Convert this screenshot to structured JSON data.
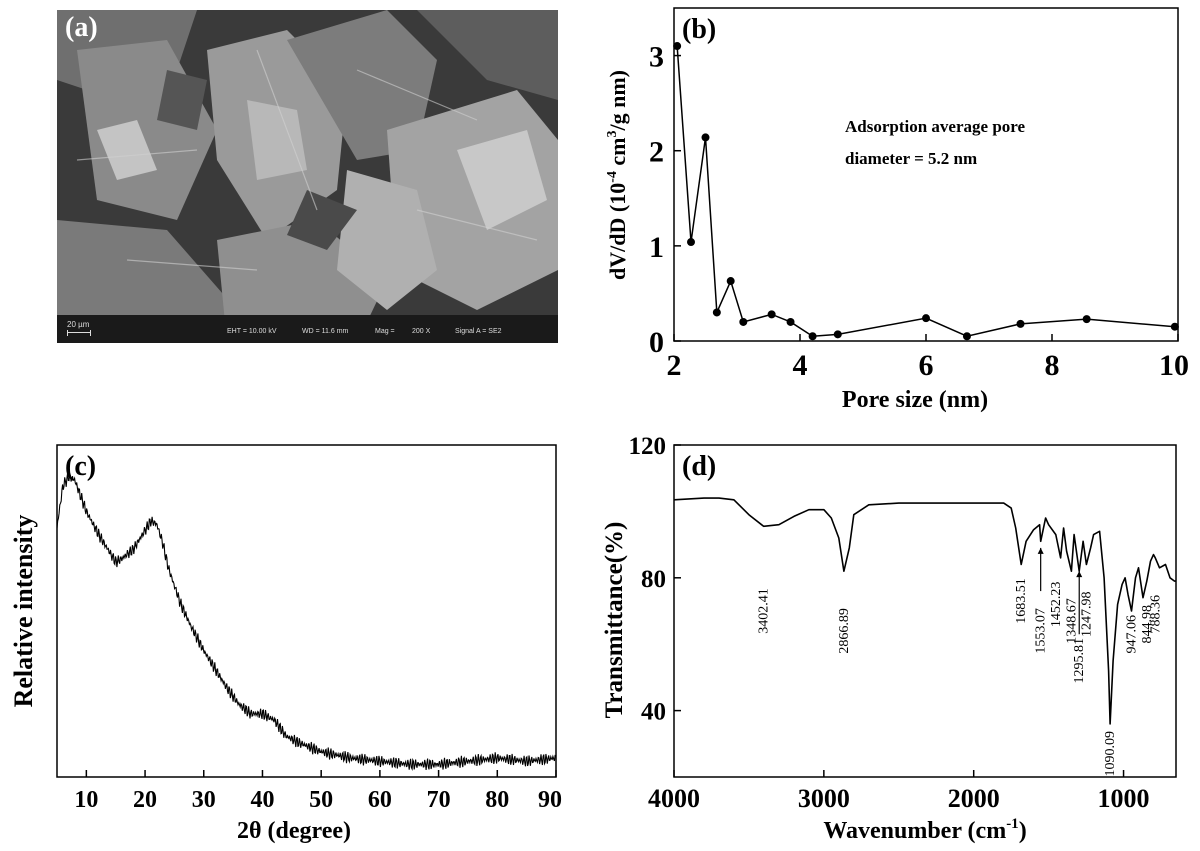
{
  "panels": {
    "a": {
      "label": "(a)",
      "scale_bar": "20 µm",
      "info": [
        "EHT = 10.00 kV",
        "WD = 11.6 mm",
        "Mag =",
        "200 X",
        "Signal A = SE2"
      ]
    },
    "b": {
      "label": "(b)",
      "annotation_line1": "Adsorption average pore",
      "annotation_line2": "diameter = 5.2 nm"
    },
    "c": {
      "label": "(c)"
    },
    "d": {
      "label": "(d)"
    }
  },
  "chart_data": [
    {
      "panel": "b",
      "type": "line",
      "xlabel": "Pore size (nm)",
      "ylabel": "dV/dD (10^-4 cm^3/g nm)",
      "xlim": [
        2,
        10
      ],
      "ylim": [
        0,
        3.5
      ],
      "xticks": [
        2,
        4,
        6,
        8,
        10
      ],
      "yticks": [
        0,
        1,
        2,
        3
      ],
      "markers": true,
      "x": [
        2.05,
        2.27,
        2.5,
        2.68,
        2.9,
        3.1,
        3.55,
        3.85,
        4.2,
        4.6,
        6.0,
        6.65,
        7.5,
        8.55,
        9.95
      ],
      "y": [
        3.1,
        1.04,
        2.14,
        0.3,
        0.63,
        0.2,
        0.28,
        0.2,
        0.05,
        0.07,
        0.24,
        0.05,
        0.18,
        0.23,
        0.15
      ]
    },
    {
      "panel": "c",
      "type": "line",
      "xlabel": "2θ (degree)",
      "ylabel": "Relative intensity",
      "xlim": [
        5,
        90
      ],
      "ylim": [
        0,
        1.05
      ],
      "xticks": [
        10,
        20,
        30,
        40,
        50,
        60,
        70,
        80,
        90
      ],
      "yticks": [],
      "x": [
        5,
        6,
        7,
        8,
        9,
        10,
        12,
        14,
        15,
        16,
        18,
        20,
        21,
        22,
        23,
        24,
        26,
        28,
        30,
        32,
        34,
        36,
        38,
        40,
        42,
        44,
        46,
        50,
        55,
        60,
        65,
        70,
        75,
        80,
        85,
        90
      ],
      "y": [
        0.79,
        0.92,
        0.95,
        0.94,
        0.89,
        0.84,
        0.77,
        0.71,
        0.68,
        0.69,
        0.72,
        0.78,
        0.81,
        0.8,
        0.74,
        0.66,
        0.55,
        0.47,
        0.4,
        0.34,
        0.28,
        0.23,
        0.2,
        0.2,
        0.18,
        0.13,
        0.11,
        0.08,
        0.06,
        0.05,
        0.04,
        0.04,
        0.05,
        0.06,
        0.05,
        0.06
      ]
    },
    {
      "panel": "d",
      "type": "line",
      "xlabel": "Wavenumber (cm-1)",
      "ylabel": "Transmittance(%)",
      "xlim": [
        4000,
        650
      ],
      "ylim": [
        20,
        120
      ],
      "xticks": [
        4000,
        3000,
        2000,
        1000
      ],
      "yticks": [
        40,
        80,
        120
      ],
      "x": [
        4000,
        3800,
        3700,
        3600,
        3500,
        3402,
        3300,
        3200,
        3100,
        3000,
        2950,
        2900,
        2866,
        2830,
        2800,
        2700,
        2500,
        2000,
        1800,
        1750,
        1720,
        1683,
        1650,
        1600,
        1560,
        1553,
        1520,
        1500,
        1452,
        1420,
        1400,
        1380,
        1348,
        1330,
        1296,
        1270,
        1248,
        1220,
        1200,
        1160,
        1130,
        1100,
        1090,
        1070,
        1040,
        1010,
        990,
        970,
        947,
        920,
        900,
        870,
        845,
        820,
        800,
        788,
        760,
        720,
        690,
        660,
        650
      ],
      "y": [
        103.5,
        104,
        104,
        103.5,
        99,
        95.5,
        96,
        98.5,
        100.5,
        100.5,
        98,
        92,
        82,
        89,
        99,
        102,
        102.5,
        102.5,
        102.5,
        101,
        95,
        84,
        91,
        94.5,
        96,
        91,
        98,
        96,
        93,
        86,
        95,
        88,
        82,
        93,
        82,
        91,
        84,
        89,
        93,
        94,
        80,
        52,
        36,
        55,
        72,
        78,
        80,
        75,
        70,
        80,
        83,
        74,
        79,
        85,
        87,
        86,
        83,
        84,
        80,
        79,
        79
      ],
      "annotations": [
        "3402.41",
        "2866.89",
        "1683.51",
        "1553.07",
        "1452.23",
        "1348.67",
        "1295.81",
        "1247.98",
        "1090.09",
        "947.06",
        "844.98",
        "788.36"
      ]
    }
  ]
}
